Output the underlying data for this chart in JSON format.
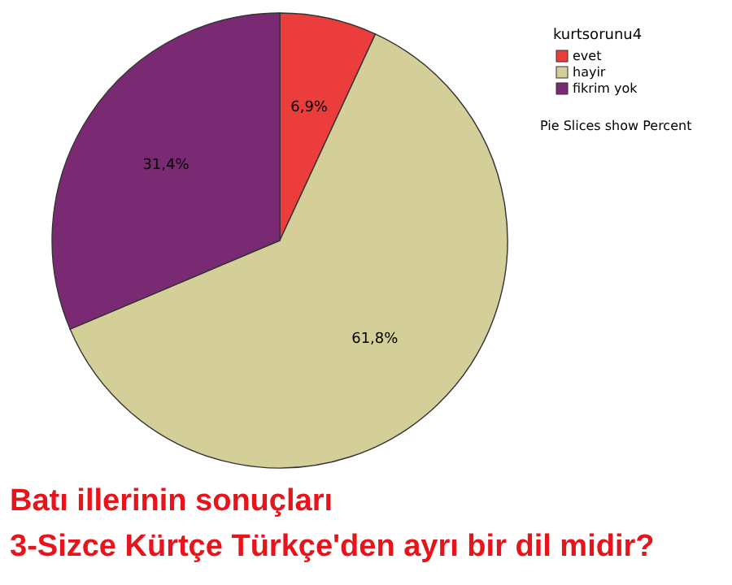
{
  "chart_data": {
    "type": "pie",
    "title": "Batı illerinin sonuçları",
    "subtitle": "3-Sizce Kürtçe Türkçe'den ayrı bir dil midir?",
    "legend_title": "kurtsorunu4",
    "legend": "top right",
    "categories": [
      "evet",
      "hayir",
      "fikrim yok"
    ],
    "values": [
      6.9,
      61.8,
      31.4
    ],
    "value_labels": [
      "6,9%",
      "61,8%",
      "31,4%"
    ],
    "colors": [
      "#ec3d3d",
      "#d4cf98",
      "#7a2a72"
    ],
    "annotations": [
      "Pie Slices show Percent"
    ]
  }
}
